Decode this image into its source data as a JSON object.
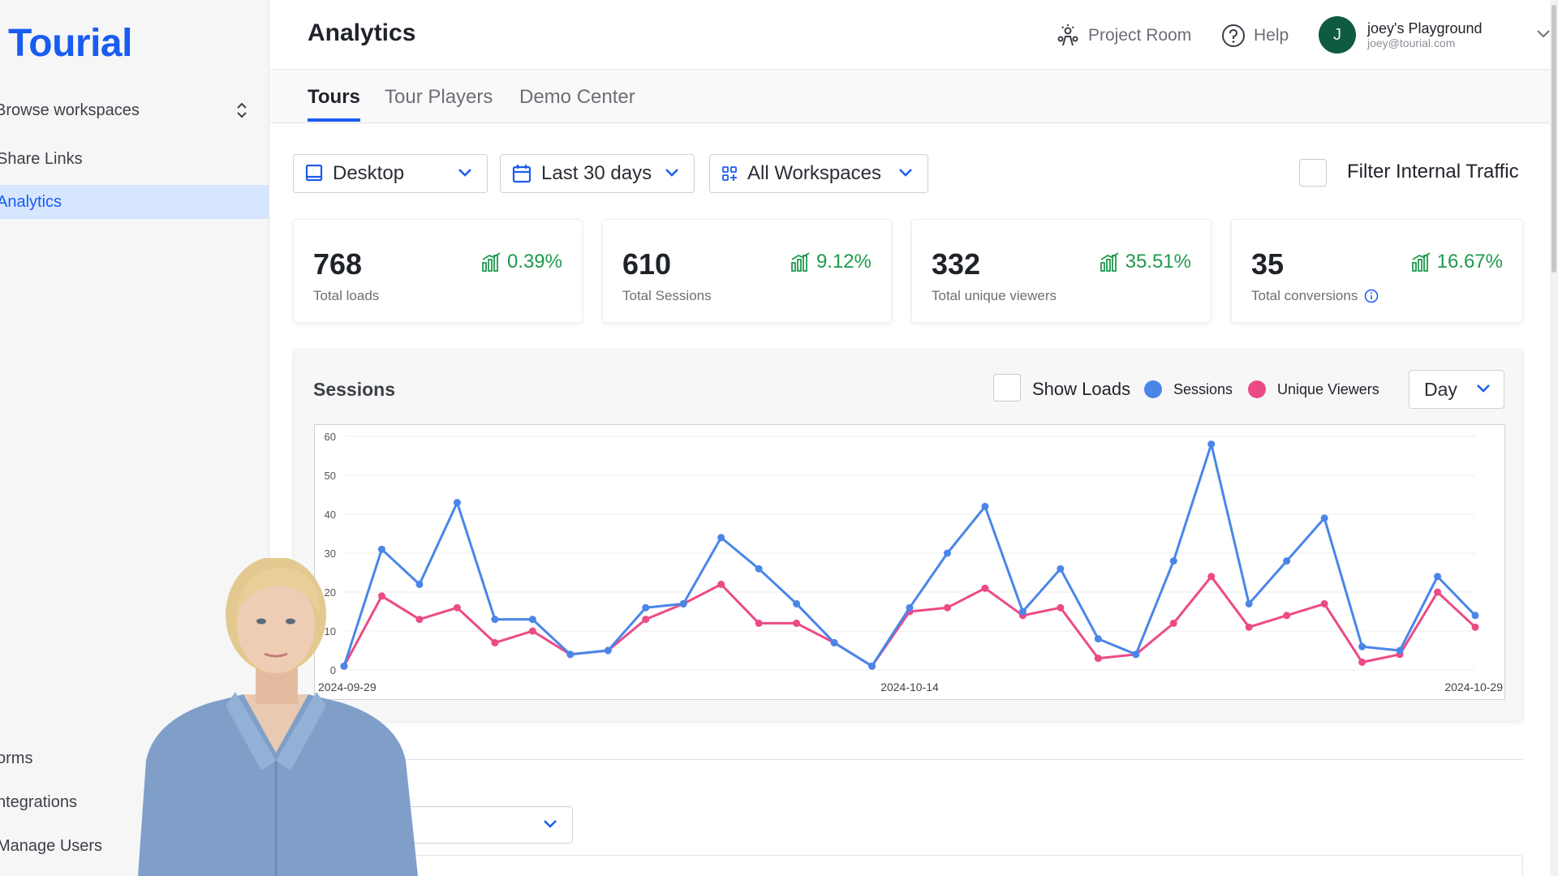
{
  "sidebar": {
    "logo": "Tourial",
    "workspace_switcher": "Browse workspaces",
    "items": [
      {
        "label": "Share Links"
      },
      {
        "label": "Analytics"
      },
      {
        "label": "orms"
      },
      {
        "label": "ntegrations"
      },
      {
        "label": "Manage Users"
      }
    ]
  },
  "header": {
    "title": "Analytics",
    "project_room": "Project Room",
    "help": "Help",
    "user": {
      "initial": "J",
      "name": "joey's Playground",
      "email": "joey@tourial.com"
    }
  },
  "tabs": [
    {
      "label": "Tours"
    },
    {
      "label": "Tour Players"
    },
    {
      "label": "Demo Center"
    }
  ],
  "filters": {
    "device": "Desktop",
    "date_range": "Last 30 days",
    "workspace": "All Workspaces",
    "internal_traffic_label": "Filter Internal Traffic",
    "internal_traffic_checked": false
  },
  "stats": [
    {
      "value": "768",
      "label": "Total loads",
      "change": "0.39%"
    },
    {
      "value": "610",
      "label": "Total Sessions",
      "change": "9.12%"
    },
    {
      "value": "332",
      "label": "Total unique viewers",
      "change": "35.51%"
    },
    {
      "value": "35",
      "label": "Total conversions",
      "change": "16.67%"
    }
  ],
  "sessions_panel": {
    "title": "Sessions",
    "show_loads_label": "Show Loads",
    "show_loads_checked": false,
    "interval": "Day"
  },
  "colors": {
    "brand": "#1a5cf0",
    "positive": "#1e9a4c",
    "sessions": "#4a86e8",
    "unique_viewers": "#ec4a86"
  },
  "chart_data": {
    "type": "line",
    "title": "",
    "xlabel": "",
    "ylabel": "",
    "ylim": [
      0,
      60
    ],
    "y_ticks": [
      0,
      10,
      20,
      30,
      40,
      50,
      60
    ],
    "x_tick_labels": [
      "2024-09-29",
      "2024-10-14",
      "2024-10-29"
    ],
    "x": [
      "2024-09-29",
      "2024-09-30",
      "2024-10-01",
      "2024-10-02",
      "2024-10-03",
      "2024-10-04",
      "2024-10-05",
      "2024-10-06",
      "2024-10-07",
      "2024-10-08",
      "2024-10-09",
      "2024-10-10",
      "2024-10-11",
      "2024-10-12",
      "2024-10-13",
      "2024-10-14",
      "2024-10-15",
      "2024-10-16",
      "2024-10-17",
      "2024-10-18",
      "2024-10-19",
      "2024-10-20",
      "2024-10-21",
      "2024-10-22",
      "2024-10-23",
      "2024-10-24",
      "2024-10-25",
      "2024-10-26",
      "2024-10-27",
      "2024-10-28",
      "2024-10-29"
    ],
    "series": [
      {
        "name": "Sessions",
        "color": "#4a86e8",
        "values": [
          1,
          31,
          22,
          43,
          13,
          13,
          4,
          5,
          16,
          17,
          34,
          26,
          17,
          7,
          1,
          16,
          30,
          42,
          15,
          26,
          8,
          4,
          28,
          58,
          17,
          28,
          39,
          6,
          5,
          24,
          14
        ]
      },
      {
        "name": "Unique Viewers",
        "color": "#ec4a86",
        "values": [
          1,
          19,
          13,
          16,
          7,
          10,
          4,
          5,
          13,
          17,
          22,
          12,
          12,
          7,
          1,
          15,
          16,
          21,
          14,
          16,
          3,
          4,
          12,
          24,
          11,
          14,
          17,
          2,
          4,
          20,
          11
        ]
      }
    ],
    "grid": true,
    "legend": "top-right"
  }
}
